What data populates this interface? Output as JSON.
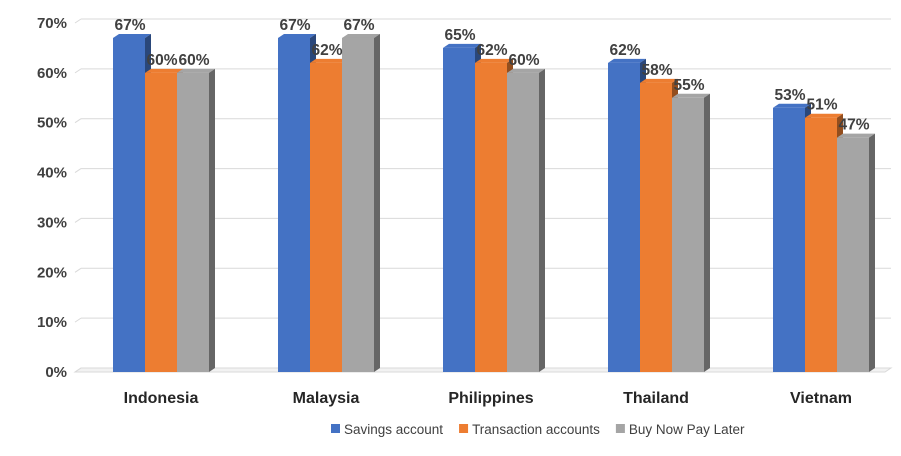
{
  "chart_data": {
    "type": "bar",
    "title": "",
    "xlabel": "",
    "ylabel": "",
    "categories": [
      "Indonesia",
      "Malaysia",
      "Philippines",
      "Thailand",
      "Vietnam"
    ],
    "series": [
      {
        "name": "Savings account",
        "values": [
          67,
          67,
          65,
          62,
          53
        ],
        "color": "#4472C4"
      },
      {
        "name": "Transaction accounts",
        "values": [
          60,
          62,
          62,
          58,
          51
        ],
        "color": "#ED7D31"
      },
      {
        "name": "Buy Now Pay Later",
        "values": [
          60,
          67,
          60,
          55,
          47
        ],
        "color": "#A5A5A5"
      }
    ],
    "ylim": [
      0,
      70
    ],
    "yticks": [
      0,
      10,
      20,
      30,
      40,
      50,
      60,
      70
    ],
    "value_format": "percent",
    "grid": true,
    "legend_position": "bottom-right",
    "style": "3d-clustered-column"
  }
}
